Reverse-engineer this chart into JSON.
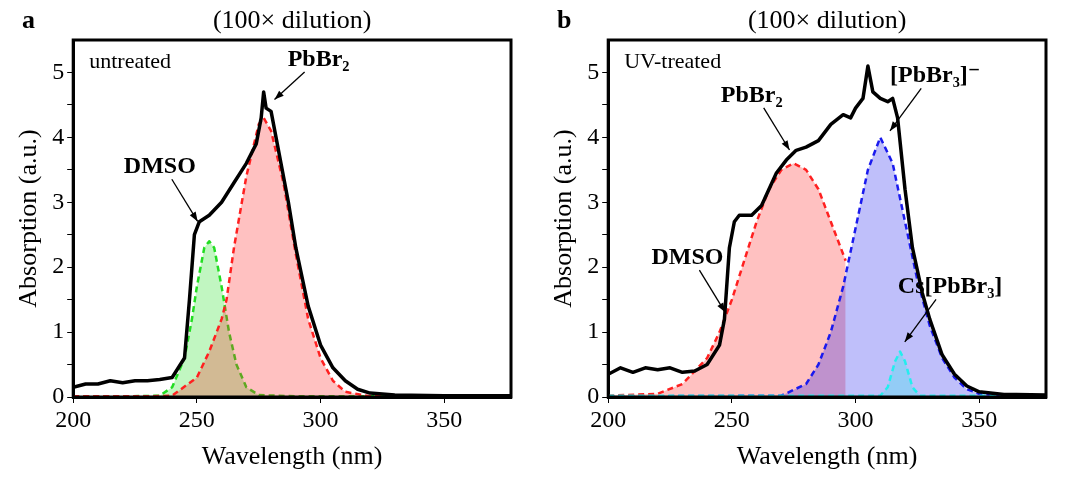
{
  "chart_data": [
    {
      "type": "line",
      "title": "(100× dilution)",
      "xlabel": "Wavelength (nm)",
      "ylabel": "Absorption (a.u.)",
      "xlim": [
        200,
        377
      ],
      "xticks": [
        200,
        250,
        300,
        350
      ],
      "ylim": [
        0,
        5.5
      ],
      "yticks": [
        0,
        {
          "value": 0.5,
          "label": null
        },
        1,
        {
          "value": 1.5,
          "label": null
        },
        2,
        {
          "value": 2.5,
          "label": null
        },
        3,
        {
          "value": 3.5,
          "label": null
        },
        4,
        {
          "value": 4.5,
          "label": null
        },
        5
      ],
      "grid": false,
      "legend": false,
      "marker": "none",
      "annotations": [
        "a",
        "untreated",
        {
          "text": "DMSO",
          "x": 252,
          "y": 2.6
        },
        {
          "text": "PbBr₂",
          "x": 279,
          "y": 4.5
        }
      ],
      "series": [
        {
          "type": "area",
          "color": "#22dd22",
          "line_style": "dashed",
          "x": [
            200,
            220,
            235,
            240,
            245,
            248,
            250,
            253,
            255,
            257,
            260,
            263,
            266,
            270,
            275,
            290,
            377
          ],
          "values": [
            0.01,
            0.01,
            0.02,
            0.15,
            0.6,
            1.2,
            1.7,
            2.3,
            2.4,
            2.3,
            1.7,
            1.0,
            0.5,
            0.15,
            0.03,
            0.01,
            0.01
          ]
        },
        {
          "type": "area",
          "color": "#ff2020",
          "line_style": "dashed",
          "x": [
            200,
            230,
            240,
            250,
            255,
            260,
            262,
            265,
            270,
            275,
            277,
            280,
            285,
            290,
            295,
            300,
            305,
            310,
            320,
            377
          ],
          "values": [
            0.01,
            0.01,
            0.02,
            0.3,
            0.7,
            1.2,
            1.5,
            2.3,
            3.4,
            4.2,
            4.3,
            4.1,
            3.3,
            2.2,
            1.2,
            0.6,
            0.25,
            0.08,
            0.01,
            0.01
          ]
        },
        {
          "type": "line",
          "color": "#000000",
          "line_style": "solid",
          "x": [
            200,
            205,
            210,
            215,
            220,
            225,
            230,
            235,
            240,
            245,
            247,
            249,
            251,
            255,
            260,
            265,
            270,
            274,
            276,
            277,
            278,
            280,
            283,
            287,
            290,
            295,
            300,
            305,
            310,
            315,
            320,
            330,
            350,
            377
          ],
          "values": [
            0.15,
            0.2,
            0.2,
            0.25,
            0.22,
            0.25,
            0.25,
            0.27,
            0.3,
            0.6,
            1.5,
            2.5,
            2.7,
            2.8,
            3.0,
            3.3,
            3.6,
            3.9,
            4.3,
            4.7,
            4.45,
            4.4,
            3.8,
            3.0,
            2.3,
            1.4,
            0.8,
            0.45,
            0.25,
            0.12,
            0.06,
            0.03,
            0.02,
            0.02
          ]
        }
      ]
    },
    {
      "type": "line",
      "title": "(100× dilution)",
      "xlabel": "Wavelength (nm)",
      "ylabel": "Absorption (a.u.)",
      "xlim": [
        200,
        377
      ],
      "xticks": [
        200,
        250,
        300,
        350
      ],
      "ylim": [
        0,
        5.5
      ],
      "yticks": [
        0,
        {
          "value": 0.5,
          "label": null
        },
        1,
        {
          "value": 1.5,
          "label": null
        },
        2,
        {
          "value": 2.5,
          "label": null
        },
        3,
        {
          "value": 3.5,
          "label": null
        },
        4,
        {
          "value": 4.5,
          "label": null
        },
        5
      ],
      "grid": false,
      "legend": false,
      "marker": "none",
      "annotations": [
        "b",
        "UV-treated",
        {
          "text": "DMSO",
          "x": 249,
          "y": 1.2
        },
        {
          "text": "PbBr₂",
          "x": 275,
          "y": 3.7
        },
        {
          "text": "[PbBr₃]⁻",
          "x": 312,
          "y": 4.0
        },
        {
          "text": "Cs[PbBr₃]",
          "x": 318,
          "y": 0.75
        }
      ],
      "series": [
        {
          "type": "area",
          "color": "#ff2020",
          "line_style": "dashed",
          "x": [
            200,
            220,
            230,
            240,
            245,
            250,
            255,
            260,
            265,
            270,
            275,
            280,
            285,
            290,
            296
          ],
          "values": [
            0.02,
            0.05,
            0.2,
            0.6,
            1.0,
            1.5,
            2.1,
            2.7,
            3.2,
            3.5,
            3.6,
            3.5,
            3.2,
            2.7,
            2.1
          ]
        },
        {
          "type": "area",
          "color": "#1a1aee",
          "line_style": "dashed",
          "x": [
            200,
            270,
            280,
            285,
            290,
            295,
            300,
            305,
            310,
            315,
            320,
            325,
            330,
            335,
            340,
            345,
            350,
            360,
            377
          ],
          "values": [
            0.01,
            0.02,
            0.2,
            0.5,
            1.0,
            1.7,
            2.6,
            3.5,
            4.0,
            3.6,
            2.7,
            1.8,
            1.1,
            0.6,
            0.3,
            0.12,
            0.05,
            0.02,
            0.01
          ]
        },
        {
          "type": "area",
          "color": "#22eeee",
          "line_style": "dashed",
          "x": [
            200,
            310,
            313,
            316,
            318,
            320,
            323,
            326,
            377
          ],
          "values": [
            0.02,
            0.02,
            0.15,
            0.55,
            0.7,
            0.55,
            0.15,
            0.02,
            0.02
          ]
        },
        {
          "type": "line",
          "color": "#000000",
          "line_style": "solid",
          "x": [
            200,
            205,
            210,
            215,
            220,
            225,
            230,
            235,
            240,
            245,
            247,
            249,
            251,
            253,
            258,
            262,
            265,
            268,
            272,
            276,
            280,
            285,
            290,
            295,
            298,
            300,
            303,
            305,
            307,
            310,
            313,
            315,
            317,
            320,
            323,
            327,
            330,
            335,
            340,
            345,
            350,
            360,
            377
          ],
          "values": [
            0.35,
            0.45,
            0.38,
            0.45,
            0.42,
            0.45,
            0.38,
            0.4,
            0.5,
            0.8,
            1.2,
            2.3,
            2.7,
            2.8,
            2.8,
            2.95,
            3.2,
            3.45,
            3.65,
            3.8,
            3.85,
            3.95,
            4.2,
            4.35,
            4.3,
            4.45,
            4.6,
            5.1,
            4.7,
            4.6,
            4.55,
            4.6,
            4.3,
            3.2,
            2.3,
            1.6,
            1.2,
            0.65,
            0.35,
            0.17,
            0.08,
            0.04,
            0.03
          ]
        }
      ]
    }
  ]
}
